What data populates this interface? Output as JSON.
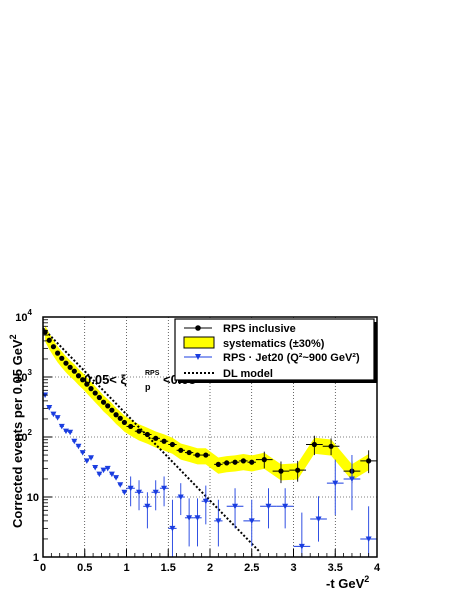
{
  "chart_data": {
    "type": "scatter",
    "xlabel_main": "-t GeV",
    "xlabel_sup": "2",
    "ylabel_main": "Corrected  events per 0.05 GeV",
    "ylabel_sup": "2",
    "y_scale": "log",
    "xlim": [
      0,
      4
    ],
    "ylim": [
      1,
      10000
    ],
    "x_tick_labels": [
      "0",
      "0.5",
      "1",
      "1.5",
      "2",
      "2.5",
      "3",
      "3.5",
      "4"
    ],
    "y_tick_labels": [
      {
        "base": "1",
        "exp": ""
      },
      {
        "base": "10",
        "exp": ""
      },
      {
        "base": "10",
        "exp": "2"
      },
      {
        "base": "10",
        "exp": "3"
      },
      {
        "base": "10",
        "exp": "4"
      }
    ],
    "grid": true,
    "legend_position": "top-right",
    "annotation": {
      "prefix": "0.05< ",
      "xi": "ξ",
      "sup": "RPS",
      "sub": "p",
      "suffix": "<0.08"
    },
    "series": [
      {
        "name": "RPS inclusive",
        "color": "#000000",
        "marker": "circle",
        "points": [
          [
            0.025,
            5600
          ],
          [
            0.075,
            4100
          ],
          [
            0.125,
            3200
          ],
          [
            0.175,
            2500
          ],
          [
            0.225,
            2050
          ],
          [
            0.275,
            1700
          ],
          [
            0.325,
            1450
          ],
          [
            0.375,
            1250
          ],
          [
            0.425,
            1050
          ],
          [
            0.475,
            900
          ],
          [
            0.525,
            760
          ],
          [
            0.575,
            640
          ],
          [
            0.625,
            540
          ],
          [
            0.675,
            455
          ],
          [
            0.725,
            380
          ],
          [
            0.775,
            330
          ],
          [
            0.825,
            280
          ],
          [
            0.875,
            235
          ],
          [
            0.925,
            205
          ],
          [
            0.975,
            175
          ],
          [
            1.05,
            150
          ],
          [
            1.15,
            125
          ],
          [
            1.25,
            110
          ],
          [
            1.35,
            95
          ],
          [
            1.45,
            85
          ],
          [
            1.55,
            75
          ],
          [
            1.65,
            60
          ],
          [
            1.75,
            55
          ],
          [
            1.85,
            50
          ],
          [
            1.95,
            50
          ],
          [
            2.1,
            35
          ],
          [
            2.2,
            37
          ],
          [
            2.3,
            38
          ],
          [
            2.4,
            40
          ],
          [
            2.5,
            38
          ],
          [
            2.65,
            42
          ],
          [
            2.85,
            27
          ],
          [
            3.05,
            28
          ],
          [
            3.25,
            75
          ],
          [
            3.45,
            70
          ],
          [
            3.7,
            27
          ],
          [
            3.9,
            40
          ]
        ],
        "x_err": [
          0.025,
          0.025,
          0.025,
          0.025,
          0.025,
          0.025,
          0.025,
          0.025,
          0.025,
          0.025,
          0.025,
          0.025,
          0.025,
          0.025,
          0.025,
          0.025,
          0.025,
          0.025,
          0.025,
          0.025,
          0.05,
          0.05,
          0.05,
          0.05,
          0.05,
          0.05,
          0.05,
          0.05,
          0.05,
          0.05,
          0.05,
          0.05,
          0.05,
          0.05,
          0.05,
          0.1,
          0.1,
          0.1,
          0.1,
          0.1,
          0.1,
          0.1
        ],
        "y_err_low": [
          0,
          0,
          0,
          0,
          0,
          0,
          0,
          0,
          0,
          0,
          0,
          0,
          0,
          0,
          0,
          0,
          0,
          0,
          0,
          0,
          0,
          0,
          0,
          0,
          0,
          0,
          0,
          0,
          0,
          0,
          0,
          0,
          0,
          0,
          0,
          12,
          10,
          10,
          25,
          20,
          10,
          15
        ],
        "y_err_high": [
          0,
          0,
          0,
          0,
          0,
          0,
          0,
          0,
          0,
          0,
          0,
          0,
          0,
          0,
          0,
          0,
          0,
          0,
          0,
          0,
          0,
          0,
          0,
          0,
          0,
          0,
          0,
          0,
          0,
          0,
          0,
          0,
          0,
          0,
          0,
          15,
          12,
          12,
          30,
          25,
          12,
          20
        ]
      },
      {
        "name": "RPS · Jet20 (Q²~900 GeV²)",
        "color": "#1a3de0",
        "marker": "triangle-down",
        "points": [
          [
            0.025,
            500
          ],
          [
            0.075,
            310
          ],
          [
            0.125,
            240
          ],
          [
            0.175,
            210
          ],
          [
            0.225,
            150
          ],
          [
            0.275,
            125
          ],
          [
            0.325,
            120
          ],
          [
            0.375,
            85
          ],
          [
            0.425,
            70
          ],
          [
            0.475,
            55
          ],
          [
            0.525,
            40
          ],
          [
            0.575,
            45
          ],
          [
            0.625,
            31
          ],
          [
            0.675,
            24
          ],
          [
            0.725,
            28
          ],
          [
            0.775,
            30
          ],
          [
            0.825,
            24
          ],
          [
            0.875,
            21
          ],
          [
            0.925,
            16
          ],
          [
            0.975,
            12
          ],
          [
            1.05,
            14
          ],
          [
            1.15,
            12
          ],
          [
            1.25,
            7
          ],
          [
            1.35,
            12
          ],
          [
            1.45,
            14
          ],
          [
            1.55,
            3
          ],
          [
            1.65,
            10
          ],
          [
            1.75,
            4.5
          ],
          [
            1.85,
            4.5
          ],
          [
            1.95,
            8.5
          ],
          [
            2.1,
            4
          ],
          [
            2.3,
            7
          ],
          [
            2.5,
            4
          ],
          [
            2.7,
            7
          ],
          [
            2.9,
            7
          ],
          [
            3.1,
            1.5
          ],
          [
            3.3,
            4.3
          ],
          [
            3.5,
            17
          ],
          [
            3.7,
            20
          ],
          [
            3.9,
            2
          ]
        ],
        "x_err": [
          0.025,
          0.025,
          0.025,
          0.025,
          0.025,
          0.025,
          0.025,
          0.025,
          0.025,
          0.025,
          0.025,
          0.025,
          0.025,
          0.025,
          0.025,
          0.025,
          0.025,
          0.025,
          0.025,
          0.025,
          0.05,
          0.05,
          0.05,
          0.05,
          0.05,
          0.05,
          0.05,
          0.05,
          0.05,
          0.05,
          0.05,
          0.1,
          0.1,
          0.1,
          0.1,
          0.1,
          0.1,
          0.1,
          0.1,
          0.1
        ],
        "y_err_low": [
          0,
          0,
          0,
          0,
          0,
          0,
          0,
          0,
          0,
          0,
          0,
          0,
          0,
          0,
          0,
          0,
          0,
          0,
          0,
          0,
          7,
          6,
          4,
          6,
          7,
          2,
          5,
          3,
          3,
          5,
          2.5,
          4,
          2.5,
          4,
          4,
          1,
          2.5,
          12,
          14,
          1
        ],
        "y_err_high": [
          0,
          0,
          0,
          0,
          0,
          0,
          0,
          0,
          0,
          0,
          0,
          0,
          0,
          0,
          0,
          0,
          0,
          0,
          0,
          0,
          8,
          7,
          5,
          7,
          8,
          6,
          7,
          5,
          5,
          7,
          5,
          7,
          5,
          7,
          7,
          4,
          6,
          25,
          30,
          5
        ]
      }
    ],
    "band": {
      "name": "systematics (±30%)",
      "fill": "#ffff00",
      "border": "#000000",
      "fraction": 0.3,
      "applies_to": "RPS inclusive"
    },
    "model": {
      "name": "DL model",
      "color": "#000000",
      "style": "dotted",
      "points": [
        [
          0.0,
          6500
        ],
        [
          2.6,
          1.2
        ]
      ]
    },
    "legend": [
      {
        "label": "RPS inclusive",
        "kind": "marker",
        "series": "RPS inclusive"
      },
      {
        "label": "systematics (±30%)",
        "kind": "band"
      },
      {
        "label": "RPS · Jet20 (Q²~900 GeV²)",
        "kind": "marker",
        "series": "RPS · Jet20 (Q²~900 GeV²)"
      },
      {
        "label": "DL model",
        "kind": "line"
      }
    ]
  }
}
